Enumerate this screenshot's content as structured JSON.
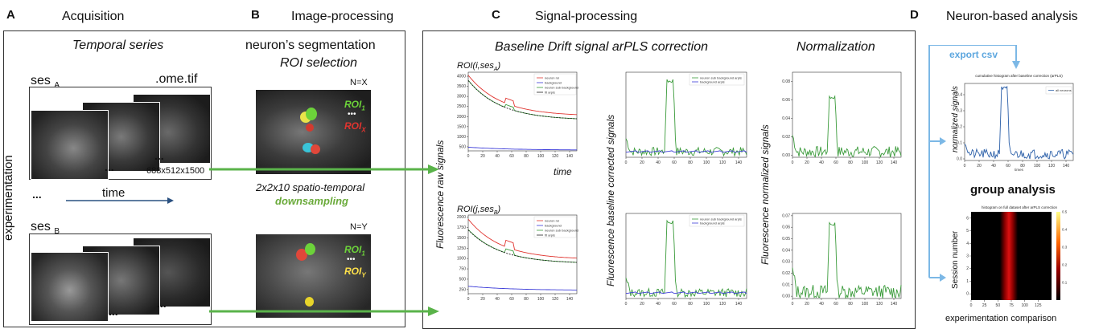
{
  "panels": {
    "A": {
      "letter": "A",
      "title": "Acquisition"
    },
    "B": {
      "letter": "B",
      "title": "Image-processing"
    },
    "C": {
      "letter": "C",
      "title": "Signal-processing"
    },
    "D": {
      "letter": "D",
      "title": "Neuron-based analysis"
    }
  },
  "acquisition": {
    "subtitle": "Temporal series",
    "ses_a": "ses",
    "ses_a_sub": "A",
    "file_ext": ".ome.tif",
    "dims": "688x512x1500",
    "dots": "...",
    "time": "time",
    "side_label": "experimentation",
    "ses_b": "ses",
    "ses_b_sub": "B"
  },
  "image_processing": {
    "title_line1": "neuron’s segmentation",
    "title_line2": "ROI selection",
    "nx": "N=X",
    "ny": "N=Y",
    "roi1": "ROI",
    "roi1_sub": "1",
    "roix": "ROI",
    "roix_sub": "X",
    "roiy": "ROI",
    "roiy_sub": "Y",
    "ellipsis": "•••",
    "downsample_line1": "2x2x10 spatio-temporal",
    "downsample_line2": "downsampling"
  },
  "signal_processing": {
    "baseline_title": "Baseline Drift signal arPLS correction",
    "normalization_title": "Normalization",
    "roi_a_label": "ROI(i,ses",
    "roi_a_sub": "A",
    "roi_b_label": "ROI(j,ses",
    "roi_b_sub": "B",
    "raw_ylabel": "Fluorescence raw signals",
    "corrected_ylabel": "Fluorescence baseline corrected signals",
    "normalized_ylabel": "Fluorescence normalized signals",
    "time_label": "time",
    "legend_raw": [
      "neuron roi",
      "background",
      "neuron sub background",
      "fit arpls"
    ],
    "legend_corrected": [
      "neuron sub background arpls",
      "background arpls"
    ]
  },
  "analysis": {
    "export_label": "export csv",
    "hist_title": "cumulative histogram after baseline correction (arPLS)",
    "hist_legend": "all neurons",
    "hist_ylabel": "normalized signals",
    "hist_xlabel": "times",
    "group_title": "group analysis",
    "heat_title": "histogram on full dataset after arPLS correction",
    "heat_ylabel": "Session number",
    "comparison": "experimentation comparison"
  },
  "colors": {
    "green_arrow": "#5ab34a",
    "blue_arrow": "#7cb8e6",
    "neuron": "#e0342f",
    "background": "#3b3bd8",
    "subtracted": "#3b9b3b",
    "fit": "#222222",
    "downsampling": "#6aaa3a"
  },
  "chart_data": [
    {
      "type": "line",
      "name": "raw_A",
      "yticks": [
        500,
        1000,
        1500,
        2000,
        2500,
        3000,
        3500,
        4000
      ],
      "xticks": [
        0,
        20,
        40,
        60,
        80,
        100,
        120,
        140
      ]
    },
    {
      "type": "line",
      "name": "corrected_A",
      "xticks": [
        0,
        20,
        40,
        60,
        80,
        100,
        120,
        140
      ]
    },
    {
      "type": "line",
      "name": "normalized_A",
      "yticks": [
        0.0,
        0.02,
        0.04,
        0.06,
        0.08
      ],
      "xticks": [
        0,
        20,
        40,
        60,
        80,
        100,
        120,
        140
      ]
    },
    {
      "type": "line",
      "name": "raw_B",
      "yticks": [
        250,
        500,
        750,
        1000,
        1250,
        1500,
        1750,
        2000
      ],
      "xticks": [
        0,
        20,
        40,
        60,
        80,
        100,
        120,
        140
      ]
    },
    {
      "type": "line",
      "name": "corrected_B",
      "xticks": [
        0,
        20,
        40,
        60,
        80,
        100,
        120,
        140
      ]
    },
    {
      "type": "line",
      "name": "normalized_B",
      "yticks": [
        0.0,
        0.01,
        0.02,
        0.03,
        0.04,
        0.05,
        0.06,
        0.07
      ],
      "xticks": [
        0,
        20,
        40,
        60,
        80,
        100,
        120,
        140
      ]
    },
    {
      "type": "line",
      "name": "cumulative",
      "yticks": [
        0.0,
        0.1,
        0.2,
        0.3,
        0.4
      ],
      "xticks": [
        0,
        20,
        40,
        60,
        80,
        100,
        120,
        140
      ]
    },
    {
      "type": "heatmap",
      "name": "session_heatmap",
      "xticks": [
        0,
        25,
        50,
        75,
        100,
        125
      ],
      "yticks": [
        0,
        1,
        2,
        3,
        4,
        5,
        6
      ],
      "colorbar": [
        0.1,
        0.2,
        0.3,
        0.4,
        0.5
      ]
    }
  ]
}
